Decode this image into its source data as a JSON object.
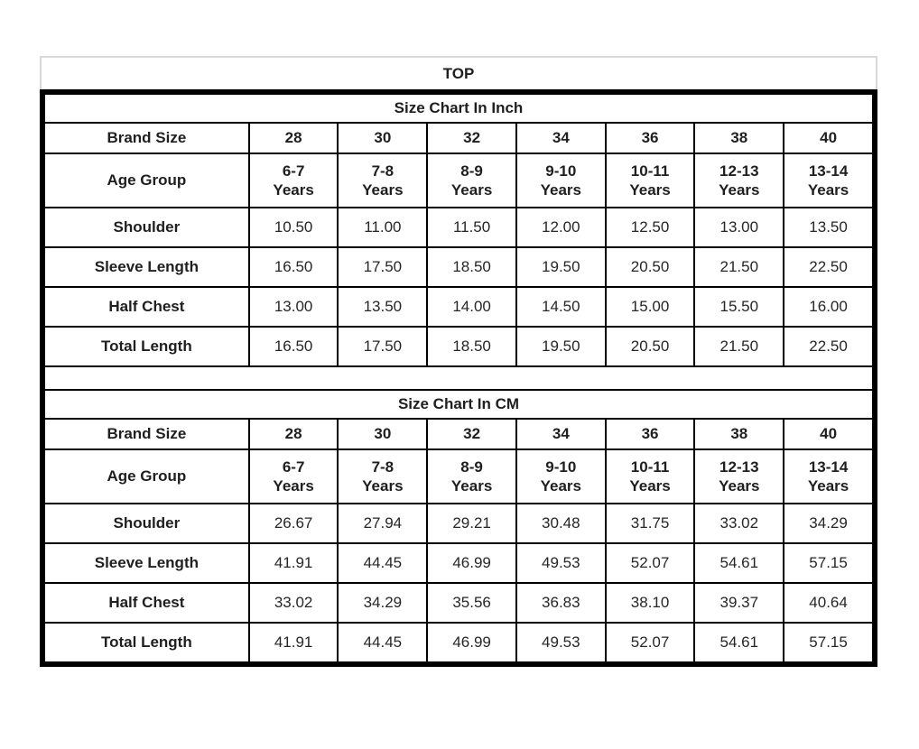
{
  "title": "TOP",
  "sections": [
    {
      "heading": "Size Chart In Inch",
      "brand_row": {
        "label": "Brand Size",
        "values": [
          "28",
          "30",
          "32",
          "34",
          "36",
          "38",
          "40"
        ]
      },
      "age_row": {
        "label": "Age Group",
        "values": [
          "6-7 Years",
          "7-8 Years",
          "8-9 Years",
          "9-10 Years",
          "10-11 Years",
          "12-13 Years",
          "13-14 Years"
        ]
      },
      "rows": [
        {
          "label": "Shoulder",
          "values": [
            "10.50",
            "11.00",
            "11.50",
            "12.00",
            "12.50",
            "13.00",
            "13.50"
          ]
        },
        {
          "label": "Sleeve Length",
          "values": [
            "16.50",
            "17.50",
            "18.50",
            "19.50",
            "20.50",
            "21.50",
            "22.50"
          ]
        },
        {
          "label": "Half Chest",
          "values": [
            "13.00",
            "13.50",
            "14.00",
            "14.50",
            "15.00",
            "15.50",
            "16.00"
          ]
        },
        {
          "label": "Total Length",
          "values": [
            "16.50",
            "17.50",
            "18.50",
            "19.50",
            "20.50",
            "21.50",
            "22.50"
          ]
        }
      ]
    },
    {
      "heading": "Size Chart In CM",
      "brand_row": {
        "label": "Brand Size",
        "values": [
          "28",
          "30",
          "32",
          "34",
          "36",
          "38",
          "40"
        ]
      },
      "age_row": {
        "label": "Age Group",
        "values": [
          "6-7 Years",
          "7-8 Years",
          "8-9 Years",
          "9-10 Years",
          "10-11 Years",
          "12-13 Years",
          "13-14 Years"
        ]
      },
      "rows": [
        {
          "label": "Shoulder",
          "values": [
            "26.67",
            "27.94",
            "29.21",
            "30.48",
            "31.75",
            "33.02",
            "34.29"
          ]
        },
        {
          "label": "Sleeve Length",
          "values": [
            "41.91",
            "44.45",
            "46.99",
            "49.53",
            "52.07",
            "54.61",
            "57.15"
          ]
        },
        {
          "label": "Half Chest",
          "values": [
            "33.02",
            "34.29",
            "35.56",
            "36.83",
            "38.10",
            "39.37",
            "40.64"
          ]
        },
        {
          "label": "Total Length",
          "values": [
            "41.91",
            "44.45",
            "46.99",
            "49.53",
            "52.07",
            "54.61",
            "57.15"
          ]
        }
      ]
    }
  ]
}
